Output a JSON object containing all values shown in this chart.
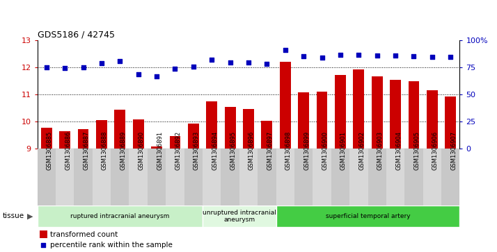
{
  "title": "GDS5186 / 42745",
  "samples": [
    "GSM1306885",
    "GSM1306886",
    "GSM1306887",
    "GSM1306888",
    "GSM1306889",
    "GSM1306890",
    "GSM1306891",
    "GSM1306892",
    "GSM1306893",
    "GSM1306894",
    "GSM1306895",
    "GSM1306896",
    "GSM1306897",
    "GSM1306898",
    "GSM1306899",
    "GSM1306900",
    "GSM1306901",
    "GSM1306902",
    "GSM1306903",
    "GSM1306904",
    "GSM1306905",
    "GSM1306906",
    "GSM1306907"
  ],
  "bar_values": [
    9.78,
    9.65,
    9.73,
    10.05,
    10.44,
    10.08,
    9.09,
    9.47,
    9.93,
    10.75,
    10.53,
    10.46,
    10.02,
    12.22,
    11.09,
    11.1,
    11.72,
    11.92,
    11.66,
    11.55,
    11.48,
    11.15,
    10.93
  ],
  "dot_values": [
    12.0,
    11.97,
    12.0,
    12.16,
    12.23,
    11.75,
    11.68,
    11.96,
    12.03,
    12.28,
    12.18,
    12.17,
    12.12,
    12.65,
    12.42,
    12.37,
    12.46,
    12.47,
    12.44,
    12.44,
    12.41,
    12.38,
    12.38
  ],
  "ylim_left": [
    9,
    13
  ],
  "ylim_right": [
    0,
    100
  ],
  "yticks_left": [
    9,
    10,
    11,
    12,
    13
  ],
  "yticks_right": [
    0,
    25,
    50,
    75,
    100
  ],
  "bar_color": "#cc0000",
  "dot_color": "#0000bb",
  "dotgrid_color": "#000000",
  "plot_bg": "#ffffff",
  "xtick_bg_color": "#d0d0d0",
  "groups": [
    {
      "label": "ruptured intracranial aneurysm",
      "start": 0,
      "end": 8,
      "color": "#c8f0c8"
    },
    {
      "label": "unruptured intracranial\naneurysm",
      "start": 9,
      "end": 12,
      "color": "#e0f8e0"
    },
    {
      "label": "superficial temporal artery",
      "start": 13,
      "end": 22,
      "color": "#44cc44"
    }
  ],
  "legend_bar_label": "transformed count",
  "legend_dot_label": "percentile rank within the sample",
  "tissue_label": "tissue"
}
